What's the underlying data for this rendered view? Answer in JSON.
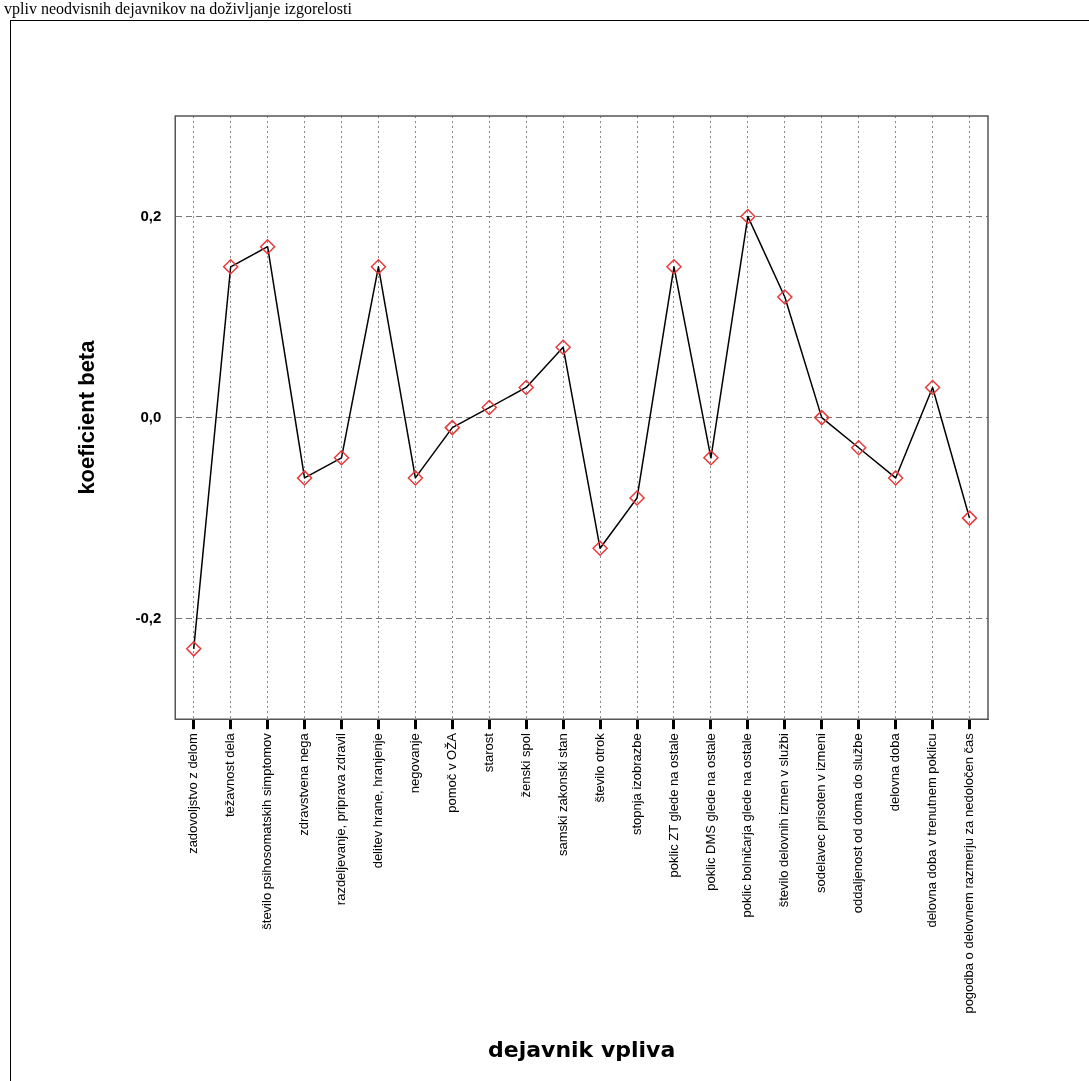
{
  "chart_data": {
    "type": "line",
    "title": "vpliv neodvisnih dejavnikov na doživljanje izgorelosti",
    "xlabel": "dejavnik vpliva",
    "ylabel": "koeficient beta",
    "categories": [
      "zadovoljstvo z delom",
      "težavnost dela",
      "število psihosomatskih simptomov",
      "zdravstvena nega",
      "razdeljevanje, priprava zdravil",
      "delitev hrane, hranjenje",
      "negovanje",
      "pomoč v OŽA",
      "starost",
      "ženski spol",
      "samski zakonski stan",
      "število otrok",
      "stopnja izobrazbe",
      "poklic ZT glede na ostale",
      "poklic DMS glede na ostale",
      "poklic bolničarja glede na ostale",
      "število delovnih izmen v službi",
      "sodelavec prisoten v izmeni",
      "oddaljenost od doma do službe",
      "delovna doba",
      "delovna doba v trenutnem poklicu",
      "pogodba o delovnem razmerju za nedoločen čas"
    ],
    "series": [
      {
        "color": "#000000",
        "values": [
          -0.23,
          0.15,
          0.17,
          -0.06,
          -0.04,
          0.15,
          -0.06,
          -0.01,
          0.01,
          0.03,
          0.07,
          -0.13,
          -0.08,
          0.15,
          -0.04,
          0.2,
          0.12,
          0.0,
          -0.03,
          -0.06,
          0.03,
          -0.1
        ]
      }
    ],
    "ylim": [
      -0.3,
      0.3
    ],
    "yticks": [
      {
        "value": -0.2,
        "label": "-0,2"
      },
      {
        "value": 0,
        "label": "0,0"
      },
      {
        "value": 0.2,
        "label": "0,2"
      }
    ],
    "grid": true,
    "legend": false,
    "marker": "diamond",
    "line_style": "solid"
  }
}
